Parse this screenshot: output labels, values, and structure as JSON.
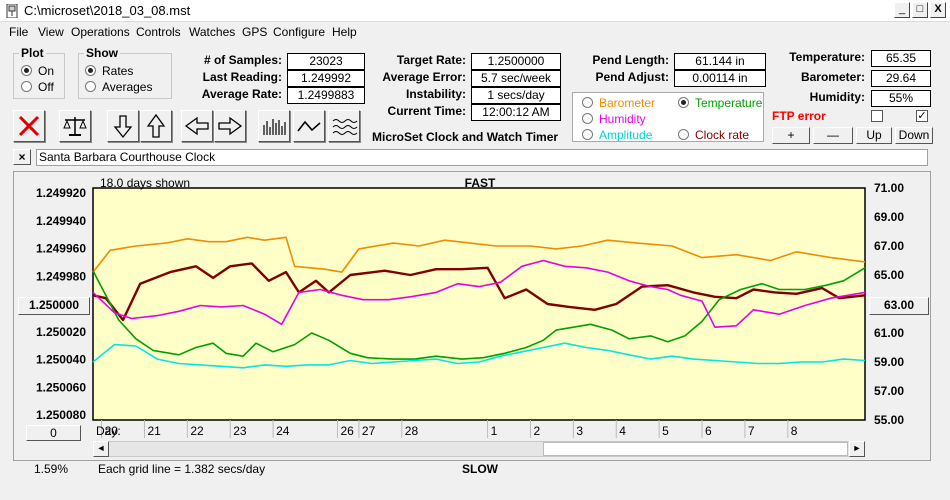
{
  "window": {
    "title": "C:\\microset\\2018_03_08.mst",
    "controls": {
      "minimize": "_",
      "maximize": "□",
      "close": "X"
    }
  },
  "menu": [
    "File",
    "View",
    "Operations",
    "Controls",
    "Watches",
    "GPS",
    "Configure",
    "Help"
  ],
  "plot_group": {
    "title": "Plot",
    "on": "On",
    "off": "Off",
    "selected": "On"
  },
  "show_group": {
    "title": "Show",
    "rates": "Rates",
    "averages": "Averages",
    "selected": "Rates"
  },
  "stats": {
    "samples_label": "# of Samples:",
    "samples": "23023",
    "last_reading_label": "Last Reading:",
    "last_reading": "1.249992",
    "average_rate_label": "Average Rate:",
    "average_rate": "1.2499883",
    "target_rate_label": "Target Rate:",
    "target_rate": "1.2500000",
    "average_error_label": "Average Error:",
    "average_error": "5.7 sec/week",
    "instability_label": "Instability:",
    "instability": "1 secs/day",
    "current_time_label": "Current Time:",
    "current_time": "12:00:12 AM",
    "pend_length_label": "Pend Length:",
    "pend_length": "61.144 in",
    "pend_adjust_label": "Pend Adjust:",
    "pend_adjust": "0.00114 in",
    "temperature_label": "Temperature:",
    "temperature": "65.35",
    "barometer_label": "Barometer:",
    "barometer": "29.64",
    "humidity_label": "Humidity:",
    "humidity": "55%"
  },
  "app_caption": "MicroSet Clock and Watch Timer",
  "series_select": {
    "barometer": "Barometer",
    "temperature": "Temperature",
    "humidity": "Humidity",
    "amplitude": "Amplitude",
    "clock_rate": "Clock rate",
    "selected": "Temperature"
  },
  "ftp": {
    "label": "FTP error",
    "checkbox2": "✓"
  },
  "adjust_buttons": {
    "plus": "+",
    "minus": "—",
    "up": "Up",
    "down": "Down"
  },
  "clock_name": "Santa Barbara Courthouse Clock",
  "clear_button": "×",
  "chart_controls": {
    "days_shown": "18.0 days shown",
    "fast": "FAST",
    "slow": "SLOW",
    "center_rate": "1.250000",
    "center_temp": "63.00",
    "offset_value": "0",
    "day_label": "Day:",
    "left_pct": "1.59%",
    "grid_note": "Each grid line = 1.382 secs/day",
    "scroll_left": "◄",
    "scroll_right": "►"
  },
  "colors": {
    "plot_bg": "#ffffc8",
    "barometer": "#f08c00",
    "temperature": "#00a000",
    "humidity": "#e600e6",
    "amplitude": "#00e6e6",
    "clock_rate": "#800000",
    "ftp_error": "#ff0000"
  },
  "chart_data": {
    "type": "line",
    "x_tick_labels": [
      "20",
      "21",
      "22",
      "23",
      "24",
      "26",
      "27",
      "28",
      "1",
      "2",
      "3",
      "4",
      "5",
      "6",
      "7",
      "8"
    ],
    "x_ticks": [
      20,
      21,
      22,
      23,
      24,
      25.5,
      26,
      27,
      29,
      30,
      31,
      32,
      33,
      34,
      35,
      36
    ],
    "xlim": [
      19.8,
      37.8
    ],
    "left_axis": {
      "ticks": [
        "1.249920",
        "1.249940",
        "1.249960",
        "1.249980",
        "1.250000",
        "1.250020",
        "1.250040",
        "1.250060",
        "1.250080"
      ],
      "ylim": [
        1.24992,
        1.25008
      ],
      "inverted": true
    },
    "right_axis": {
      "ticks": [
        "71.00",
        "69.00",
        "67.00",
        "65.00",
        "63.00",
        "61.00",
        "59.00",
        "57.00",
        "55.00"
      ],
      "ylim": [
        55,
        71
      ]
    },
    "grid": false,
    "series": [
      {
        "key": "barometer",
        "points": [
          [
            19.8,
            65.2
          ],
          [
            20.2,
            66.7
          ],
          [
            20.8,
            67.0
          ],
          [
            21.5,
            67.2
          ],
          [
            22.0,
            67.5
          ],
          [
            22.5,
            67.3
          ],
          [
            22.9,
            67.3
          ],
          [
            23.4,
            67.6
          ],
          [
            23.8,
            67.4
          ],
          [
            24.3,
            67.6
          ],
          [
            24.5,
            65.6
          ],
          [
            25.2,
            65.4
          ],
          [
            25.6,
            65.2
          ],
          [
            26.0,
            66.8
          ],
          [
            26.8,
            67.2
          ],
          [
            27.4,
            67.0
          ],
          [
            28.0,
            67.4
          ],
          [
            28.6,
            67.2
          ],
          [
            29.2,
            67.0
          ],
          [
            30.0,
            67.0
          ],
          [
            30.6,
            66.8
          ],
          [
            31.2,
            67.0
          ],
          [
            31.8,
            67.4
          ],
          [
            32.5,
            67.2
          ],
          [
            33.3,
            67.0
          ],
          [
            34.0,
            66.2
          ],
          [
            34.8,
            66.4
          ],
          [
            35.6,
            66.0
          ],
          [
            36.2,
            66.6
          ],
          [
            37.0,
            66.2
          ],
          [
            37.8,
            65.9
          ]
        ]
      },
      {
        "key": "clock_rate",
        "points": [
          [
            19.8,
            63.6
          ],
          [
            20.1,
            63.4
          ],
          [
            20.5,
            61.9
          ],
          [
            20.9,
            64.4
          ],
          [
            21.6,
            65.2
          ],
          [
            22.2,
            65.6
          ],
          [
            22.6,
            64.8
          ],
          [
            23.0,
            65.6
          ],
          [
            23.5,
            65.8
          ],
          [
            23.9,
            64.6
          ],
          [
            24.3,
            65.2
          ],
          [
            24.6,
            63.8
          ],
          [
            25.0,
            64.6
          ],
          [
            25.3,
            63.8
          ],
          [
            25.8,
            65.0
          ],
          [
            26.6,
            65.3
          ],
          [
            27.2,
            65.0
          ],
          [
            27.8,
            65.4
          ],
          [
            28.4,
            65.4
          ],
          [
            29.0,
            65.5
          ],
          [
            29.4,
            63.4
          ],
          [
            29.9,
            64.0
          ],
          [
            30.4,
            63.0
          ],
          [
            30.9,
            62.8
          ],
          [
            31.5,
            62.6
          ],
          [
            32.0,
            63.0
          ],
          [
            32.6,
            64.2
          ],
          [
            33.2,
            64.3
          ],
          [
            33.8,
            63.8
          ],
          [
            34.3,
            63.5
          ],
          [
            34.8,
            63.4
          ],
          [
            35.2,
            64.0
          ],
          [
            35.7,
            63.8
          ],
          [
            36.2,
            63.7
          ],
          [
            36.8,
            64.1
          ],
          [
            37.2,
            63.4
          ],
          [
            37.8,
            63.6
          ]
        ]
      },
      {
        "key": "temperature",
        "points": [
          [
            19.8,
            65.3
          ],
          [
            20.4,
            61.9
          ],
          [
            20.8,
            60.6
          ],
          [
            21.2,
            59.8
          ],
          [
            21.8,
            59.5
          ],
          [
            22.2,
            60.0
          ],
          [
            22.6,
            60.3
          ],
          [
            22.9,
            59.6
          ],
          [
            23.3,
            59.4
          ],
          [
            23.6,
            60.3
          ],
          [
            24.0,
            59.7
          ],
          [
            24.5,
            60.2
          ],
          [
            24.9,
            61.0
          ],
          [
            25.3,
            60.5
          ],
          [
            25.8,
            59.6
          ],
          [
            26.2,
            59.3
          ],
          [
            26.8,
            59.2
          ],
          [
            27.3,
            59.2
          ],
          [
            27.8,
            59.4
          ],
          [
            28.4,
            59.2
          ],
          [
            28.9,
            59.3
          ],
          [
            29.4,
            59.6
          ],
          [
            29.9,
            60.0
          ],
          [
            30.3,
            60.5
          ],
          [
            30.6,
            61.2
          ],
          [
            31.0,
            61.4
          ],
          [
            31.4,
            61.6
          ],
          [
            31.9,
            61.2
          ],
          [
            32.3,
            60.6
          ],
          [
            32.8,
            60.8
          ],
          [
            33.2,
            60.4
          ],
          [
            33.6,
            60.8
          ],
          [
            34.0,
            61.8
          ],
          [
            34.4,
            63.3
          ],
          [
            34.9,
            64.0
          ],
          [
            35.4,
            64.4
          ],
          [
            35.8,
            64.0
          ],
          [
            36.4,
            64.0
          ],
          [
            36.9,
            64.3
          ],
          [
            37.3,
            64.6
          ],
          [
            37.8,
            65.5
          ]
        ]
      },
      {
        "key": "humidity",
        "points": [
          [
            19.8,
            63.8
          ],
          [
            20.3,
            62.4
          ],
          [
            20.7,
            62.0
          ],
          [
            21.3,
            62.2
          ],
          [
            21.8,
            62.5
          ],
          [
            22.3,
            62.9
          ],
          [
            22.8,
            62.8
          ],
          [
            23.3,
            62.9
          ],
          [
            23.8,
            62.3
          ],
          [
            24.2,
            61.6
          ],
          [
            24.6,
            63.8
          ],
          [
            25.1,
            64.0
          ],
          [
            25.6,
            63.6
          ],
          [
            26.1,
            63.3
          ],
          [
            26.7,
            63.3
          ],
          [
            27.2,
            63.5
          ],
          [
            27.8,
            63.8
          ],
          [
            28.3,
            64.4
          ],
          [
            28.8,
            64.2
          ],
          [
            29.3,
            64.5
          ],
          [
            29.8,
            65.6
          ],
          [
            30.3,
            66.0
          ],
          [
            30.8,
            65.6
          ],
          [
            31.3,
            65.5
          ],
          [
            31.8,
            65.2
          ],
          [
            32.3,
            64.6
          ],
          [
            32.8,
            64.2
          ],
          [
            33.2,
            64.0
          ],
          [
            33.5,
            63.6
          ],
          [
            34.0,
            63.2
          ],
          [
            34.3,
            61.4
          ],
          [
            34.8,
            61.5
          ],
          [
            35.2,
            62.6
          ],
          [
            35.8,
            62.3
          ],
          [
            36.4,
            62.9
          ],
          [
            37.0,
            63.4
          ],
          [
            37.8,
            63.8
          ]
        ]
      },
      {
        "key": "amplitude",
        "points": [
          [
            19.8,
            59.0
          ],
          [
            20.3,
            60.2
          ],
          [
            20.8,
            60.1
          ],
          [
            21.3,
            59.2
          ],
          [
            21.8,
            58.9
          ],
          [
            22.3,
            58.8
          ],
          [
            22.8,
            58.7
          ],
          [
            23.3,
            58.6
          ],
          [
            23.8,
            58.8
          ],
          [
            24.3,
            58.7
          ],
          [
            24.8,
            58.8
          ],
          [
            25.3,
            58.8
          ],
          [
            25.8,
            59.1
          ],
          [
            26.3,
            58.9
          ],
          [
            26.8,
            59.0
          ],
          [
            27.3,
            59.1
          ],
          [
            27.8,
            59.2
          ],
          [
            28.3,
            58.9
          ],
          [
            28.8,
            59.0
          ],
          [
            29.3,
            59.4
          ],
          [
            29.8,
            59.7
          ],
          [
            30.3,
            60.0
          ],
          [
            30.8,
            60.3
          ],
          [
            31.3,
            60.0
          ],
          [
            31.8,
            59.8
          ],
          [
            32.3,
            59.5
          ],
          [
            32.8,
            59.2
          ],
          [
            33.3,
            59.4
          ],
          [
            33.8,
            59.2
          ],
          [
            34.3,
            59.1
          ],
          [
            34.8,
            59.0
          ],
          [
            35.3,
            58.9
          ],
          [
            35.8,
            58.9
          ],
          [
            36.3,
            59.0
          ],
          [
            36.8,
            59.0
          ],
          [
            37.3,
            59.2
          ],
          [
            37.8,
            59.1
          ]
        ]
      }
    ]
  }
}
